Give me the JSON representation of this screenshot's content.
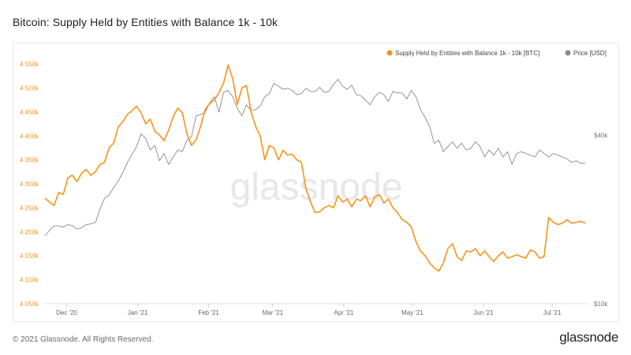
{
  "header": {
    "title": "Bitcoin: Supply Held by Entities with Balance 1k - 10k"
  },
  "footer": {
    "copyright": "© 2021 Glassnode. All Rights Reserved.",
    "logo": "glassnode"
  },
  "watermark": "glassnode",
  "colors": {
    "supply": "#f7931a",
    "price": "#8a8a8a",
    "axis_left": "#f7931a",
    "axis_right": "#777777",
    "grid": "#f0f0f0"
  },
  "chart_data": {
    "type": "line",
    "title": "Bitcoin: Supply Held by Entities with Balance 1k - 10k",
    "x_tick_labels": [
      "Dec '20",
      "Jan '21",
      "Feb '21",
      "Mar '21",
      "Apr '21",
      "May '21",
      "Jun '21",
      "Jul '21"
    ],
    "x_tick_positions": [
      4.5,
      35.5,
      66.5,
      94.5,
      125.5,
      155.5,
      186.5,
      216.5
    ],
    "x_range": [
      -5,
      232
    ],
    "y_left": {
      "ticks": [
        4050000,
        4100000,
        4150000,
        4200000,
        4250000,
        4300000,
        4350000,
        4400000,
        4450000,
        4500000,
        4550000
      ],
      "tick_labels": [
        "4 050k",
        "4 100k",
        "4 150k",
        "4 200k",
        "4 250k",
        "4 300k",
        "4 350k",
        "4 400k",
        "4 450k",
        "4 500k",
        "4 550k"
      ],
      "range": [
        4050000,
        4560000
      ]
    },
    "y_right": {
      "scale": "log",
      "ticks": [
        10000,
        40000
      ],
      "tick_labels": [
        "$10k",
        "$40k"
      ],
      "range": [
        10000,
        75000
      ]
    },
    "legend": {
      "placement": "top-right"
    },
    "series": [
      {
        "name": "Supply Held by Entities with Balance 1k - 10k [BTC]",
        "axis": "left",
        "x": [
          -5,
          -3,
          -1,
          1,
          3,
          5,
          7,
          9,
          11,
          13,
          15,
          17,
          19,
          21,
          23,
          25,
          27,
          29,
          31,
          33,
          35,
          37,
          39,
          41,
          43,
          45,
          47,
          49,
          51,
          53,
          55,
          57,
          59,
          61,
          63,
          65,
          67,
          69,
          71,
          73,
          75,
          77,
          79,
          81,
          83,
          85,
          87,
          89,
          91,
          93,
          95,
          97,
          99,
          101,
          103,
          105,
          107,
          109,
          111,
          113,
          115,
          117,
          119,
          121,
          123,
          125,
          127,
          129,
          131,
          133,
          135,
          137,
          139,
          141,
          143,
          145,
          147,
          149,
          151,
          153,
          155,
          157,
          159,
          161,
          163,
          165,
          167,
          169,
          171,
          173,
          175,
          177,
          179,
          181,
          183,
          185,
          187,
          189,
          191,
          193,
          195,
          197,
          199,
          201,
          203,
          205,
          207,
          209,
          211,
          213,
          215,
          217,
          219,
          221,
          223,
          225,
          227,
          229,
          231
        ],
        "values": [
          4270000,
          4262000,
          4255000,
          4282000,
          4278000,
          4312000,
          4318000,
          4305000,
          4322000,
          4330000,
          4318000,
          4325000,
          4340000,
          4345000,
          4375000,
          4385000,
          4418000,
          4430000,
          4445000,
          4452000,
          4462000,
          4448000,
          4425000,
          4435000,
          4410000,
          4402000,
          4390000,
          4412000,
          4440000,
          4458000,
          4448000,
          4405000,
          4380000,
          4392000,
          4420000,
          4455000,
          4468000,
          4475000,
          4490000,
          4510000,
          4548000,
          4520000,
          4465000,
          4500000,
          4505000,
          4450000,
          4420000,
          4400000,
          4350000,
          4380000,
          4375000,
          4350000,
          4370000,
          4360000,
          4362000,
          4350000,
          4345000,
          4290000,
          4262000,
          4240000,
          4242000,
          4250000,
          4255000,
          4250000,
          4275000,
          4262000,
          4268000,
          4252000,
          4268000,
          4265000,
          4275000,
          4252000,
          4272000,
          4278000,
          4260000,
          4268000,
          4250000,
          4240000,
          4225000,
          4220000,
          4210000,
          4180000,
          4160000,
          4150000,
          4135000,
          4125000,
          4118000,
          4135000,
          4165000,
          4175000,
          4148000,
          4140000,
          4160000,
          4158000,
          4165000,
          4150000,
          4160000,
          4148000,
          4138000,
          4150000,
          4158000,
          4145000,
          4148000,
          4152000,
          4148000,
          4145000,
          4162000,
          4158000,
          4145000,
          4148000,
          4230000,
          4220000,
          4215000,
          4218000,
          4225000,
          4218000,
          4220000,
          4222000,
          4218000
        ]
      },
      {
        "name": "Price [USD]",
        "axis": "right",
        "x": [
          -5,
          -3,
          -1,
          1,
          3,
          5,
          7,
          9,
          11,
          13,
          15,
          17,
          19,
          21,
          23,
          25,
          27,
          29,
          31,
          33,
          35,
          37,
          39,
          41,
          43,
          45,
          47,
          49,
          51,
          53,
          55,
          57,
          59,
          61,
          63,
          65,
          67,
          69,
          71,
          73,
          75,
          77,
          79,
          81,
          83,
          85,
          87,
          89,
          91,
          93,
          95,
          97,
          99,
          101,
          103,
          105,
          107,
          109,
          111,
          113,
          115,
          117,
          119,
          121,
          123,
          125,
          127,
          129,
          131,
          133,
          135,
          137,
          139,
          141,
          143,
          145,
          147,
          149,
          151,
          153,
          155,
          157,
          159,
          161,
          163,
          165,
          167,
          169,
          171,
          173,
          175,
          177,
          179,
          181,
          183,
          185,
          187,
          189,
          191,
          193,
          195,
          197,
          199,
          201,
          203,
          205,
          207,
          209,
          211,
          213,
          215,
          217,
          219,
          221,
          223,
          225,
          227,
          229,
          231
        ],
        "values": [
          17500,
          18300,
          19000,
          19000,
          18800,
          19200,
          19000,
          18500,
          18700,
          19200,
          19300,
          19500,
          21800,
          23800,
          24500,
          26000,
          27500,
          29500,
          32000,
          34200,
          36500,
          40500,
          39000,
          35500,
          36800,
          32500,
          34500,
          31500,
          33500,
          35500,
          35000,
          38500,
          39500,
          47000,
          47500,
          48500,
          52500,
          55000,
          48500,
          57000,
          58000,
          55000,
          50000,
          47000,
          51500,
          49000,
          49500,
          51000,
          55000,
          56500,
          61500,
          60000,
          58500,
          59000,
          58000,
          56000,
          56500,
          59000,
          57500,
          57500,
          59500,
          57000,
          57500,
          61000,
          63500,
          60000,
          58500,
          60500,
          56000,
          55500,
          53500,
          51500,
          55000,
          57000,
          56000,
          53000,
          57500,
          56800,
          56800,
          54000,
          58000,
          55000,
          49500,
          46500,
          43000,
          37500,
          38500,
          35000,
          36500,
          38000,
          36000,
          37500,
          35500,
          36000,
          38000,
          36500,
          33500,
          35500,
          34000,
          36000,
          33500,
          35000,
          31500,
          34500,
          35000,
          34500,
          34000,
          33500,
          35500,
          34500,
          33500,
          34500,
          34000,
          33500,
          33000,
          32000,
          32500,
          31800,
          31800
        ]
      }
    ]
  }
}
